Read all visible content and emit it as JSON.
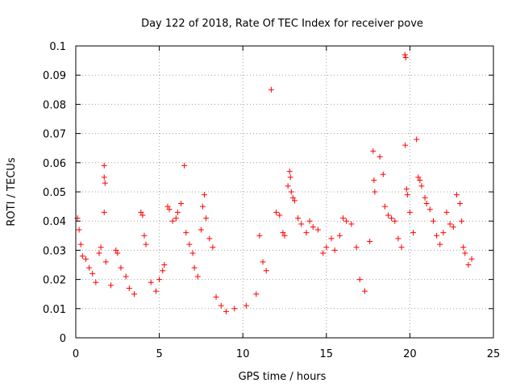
{
  "chart_data": {
    "type": "scatter",
    "title": "Day 122 of 2018, Rate Of TEC Index for receiver pove",
    "xlabel": "GPS time / hours",
    "ylabel": "ROTI / TECUs",
    "xlim": [
      0,
      25
    ],
    "ylim": [
      0,
      0.1
    ],
    "xticks": [
      0,
      5,
      10,
      15,
      20,
      25
    ],
    "xtick_labels": [
      "0",
      "5",
      "10",
      "15",
      "20",
      "25"
    ],
    "yticks": [
      0,
      0.01,
      0.02,
      0.03,
      0.04,
      0.05,
      0.06,
      0.07,
      0.08,
      0.09,
      0.1
    ],
    "ytick_labels": [
      "0",
      "0.01",
      "0.02",
      "0.03",
      "0.04",
      "0.05",
      "0.06",
      "0.07",
      "0.08",
      "0.09",
      "0.1"
    ],
    "grid": true,
    "marker": "+",
    "color": "#ff0000",
    "series": [
      {
        "name": "ROTI",
        "points": [
          [
            0.1,
            0.041
          ],
          [
            0.2,
            0.037
          ],
          [
            0.3,
            0.032
          ],
          [
            0.4,
            0.028
          ],
          [
            0.6,
            0.027
          ],
          [
            0.8,
            0.024
          ],
          [
            1.0,
            0.022
          ],
          [
            1.2,
            0.019
          ],
          [
            1.4,
            0.029
          ],
          [
            1.5,
            0.031
          ],
          [
            1.7,
            0.059
          ],
          [
            1.7,
            0.055
          ],
          [
            1.75,
            0.053
          ],
          [
            1.7,
            0.043
          ],
          [
            1.8,
            0.026
          ],
          [
            2.1,
            0.018
          ],
          [
            2.4,
            0.03
          ],
          [
            2.5,
            0.029
          ],
          [
            2.7,
            0.024
          ],
          [
            3.0,
            0.021
          ],
          [
            3.2,
            0.017
          ],
          [
            3.5,
            0.015
          ],
          [
            3.9,
            0.043
          ],
          [
            4.0,
            0.042
          ],
          [
            4.1,
            0.035
          ],
          [
            4.2,
            0.032
          ],
          [
            4.5,
            0.019
          ],
          [
            4.8,
            0.016
          ],
          [
            5.0,
            0.02
          ],
          [
            5.2,
            0.023
          ],
          [
            5.3,
            0.025
          ],
          [
            5.5,
            0.045
          ],
          [
            5.6,
            0.044
          ],
          [
            5.8,
            0.04
          ],
          [
            6.0,
            0.041
          ],
          [
            6.1,
            0.043
          ],
          [
            6.3,
            0.046
          ],
          [
            6.5,
            0.059
          ],
          [
            6.6,
            0.036
          ],
          [
            6.8,
            0.032
          ],
          [
            7.0,
            0.029
          ],
          [
            7.1,
            0.024
          ],
          [
            7.3,
            0.021
          ],
          [
            7.5,
            0.037
          ],
          [
            7.6,
            0.045
          ],
          [
            7.7,
            0.049
          ],
          [
            7.8,
            0.041
          ],
          [
            8.0,
            0.034
          ],
          [
            8.2,
            0.031
          ],
          [
            8.4,
            0.014
          ],
          [
            8.7,
            0.011
          ],
          [
            9.0,
            0.009
          ],
          [
            9.5,
            0.01
          ],
          [
            10.2,
            0.011
          ],
          [
            10.8,
            0.015
          ],
          [
            11.0,
            0.035
          ],
          [
            11.2,
            0.026
          ],
          [
            11.4,
            0.023
          ],
          [
            11.7,
            0.085
          ],
          [
            12.0,
            0.043
          ],
          [
            12.2,
            0.042
          ],
          [
            12.4,
            0.036
          ],
          [
            12.5,
            0.035
          ],
          [
            12.7,
            0.052
          ],
          [
            12.8,
            0.057
          ],
          [
            12.85,
            0.055
          ],
          [
            12.9,
            0.05
          ],
          [
            13.0,
            0.048
          ],
          [
            13.1,
            0.047
          ],
          [
            13.3,
            0.041
          ],
          [
            13.5,
            0.039
          ],
          [
            13.8,
            0.036
          ],
          [
            14.0,
            0.04
          ],
          [
            14.2,
            0.038
          ],
          [
            14.5,
            0.037
          ],
          [
            14.8,
            0.029
          ],
          [
            15.0,
            0.031
          ],
          [
            15.3,
            0.034
          ],
          [
            15.5,
            0.03
          ],
          [
            15.8,
            0.035
          ],
          [
            16.0,
            0.041
          ],
          [
            16.2,
            0.04
          ],
          [
            16.5,
            0.039
          ],
          [
            16.8,
            0.031
          ],
          [
            17.0,
            0.02
          ],
          [
            17.3,
            0.016
          ],
          [
            17.6,
            0.033
          ],
          [
            17.8,
            0.064
          ],
          [
            17.85,
            0.054
          ],
          [
            17.9,
            0.05
          ],
          [
            18.2,
            0.062
          ],
          [
            18.4,
            0.056
          ],
          [
            18.5,
            0.045
          ],
          [
            18.7,
            0.042
          ],
          [
            18.9,
            0.041
          ],
          [
            19.1,
            0.04
          ],
          [
            19.3,
            0.034
          ],
          [
            19.5,
            0.031
          ],
          [
            19.7,
            0.097
          ],
          [
            19.75,
            0.096
          ],
          [
            19.72,
            0.066
          ],
          [
            19.8,
            0.051
          ],
          [
            19.85,
            0.049
          ],
          [
            20.0,
            0.043
          ],
          [
            20.2,
            0.036
          ],
          [
            20.4,
            0.068
          ],
          [
            20.5,
            0.055
          ],
          [
            20.6,
            0.054
          ],
          [
            20.7,
            0.052
          ],
          [
            20.9,
            0.048
          ],
          [
            21.0,
            0.046
          ],
          [
            21.2,
            0.044
          ],
          [
            21.4,
            0.04
          ],
          [
            21.6,
            0.035
          ],
          [
            21.8,
            0.032
          ],
          [
            22.0,
            0.036
          ],
          [
            22.2,
            0.043
          ],
          [
            22.4,
            0.039
          ],
          [
            22.6,
            0.038
          ],
          [
            22.8,
            0.049
          ],
          [
            23.0,
            0.046
          ],
          [
            23.1,
            0.04
          ],
          [
            23.2,
            0.031
          ],
          [
            23.3,
            0.029
          ],
          [
            23.5,
            0.025
          ],
          [
            23.7,
            0.027
          ]
        ]
      }
    ]
  }
}
